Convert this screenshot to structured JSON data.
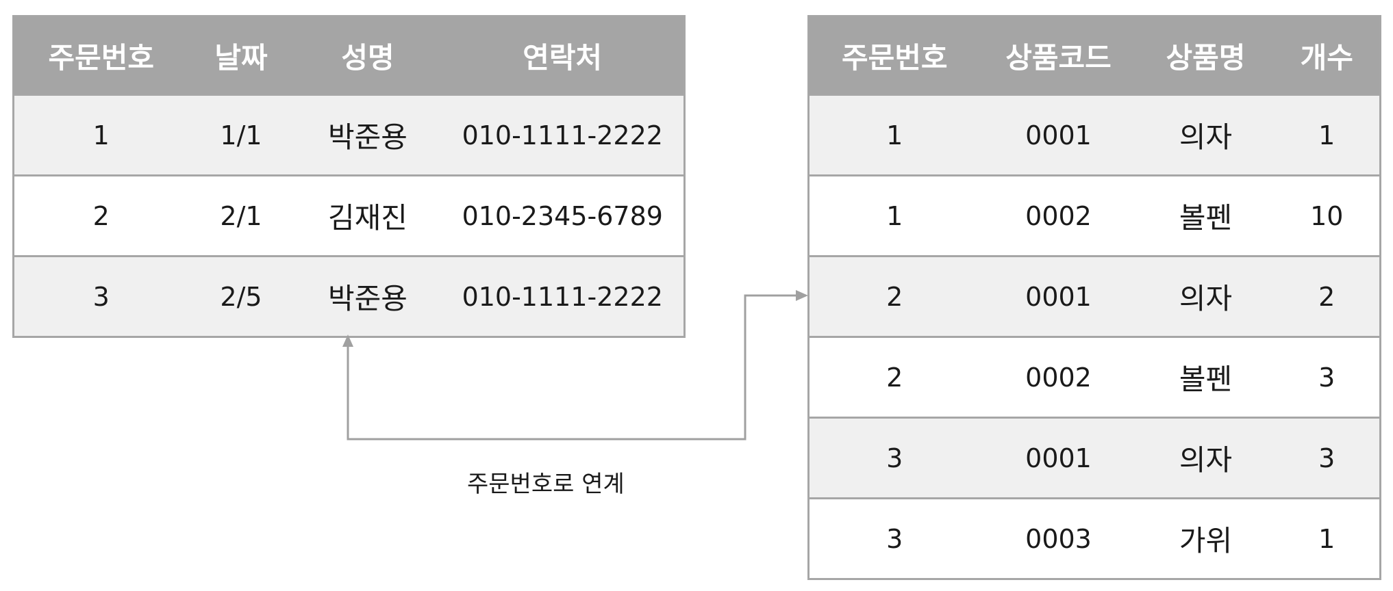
{
  "orders_table": {
    "headers": [
      "주문번호",
      "날짜",
      "성명",
      "연락처"
    ],
    "rows": [
      [
        "1",
        "1/1",
        "박준용",
        "010-1111-2222"
      ],
      [
        "2",
        "2/1",
        "김재진",
        "010-2345-6789"
      ],
      [
        "3",
        "2/5",
        "박준용",
        "010-1111-2222"
      ]
    ]
  },
  "items_table": {
    "headers": [
      "주문번호",
      "상품코드",
      "상품명",
      "개수"
    ],
    "rows": [
      [
        "1",
        "0001",
        "의자",
        "1"
      ],
      [
        "1",
        "0002",
        "볼펜",
        "10"
      ],
      [
        "2",
        "0001",
        "의자",
        "2"
      ],
      [
        "2",
        "0002",
        "볼펜",
        "3"
      ],
      [
        "3",
        "0001",
        "의자",
        "3"
      ],
      [
        "3",
        "0003",
        "가위",
        "1"
      ]
    ]
  },
  "link": {
    "caption": "주문번호로 연계"
  },
  "colors": {
    "header_bg": "#a5a5a5",
    "header_text": "#ffffff",
    "row_shade": "#f0f0f0",
    "border": "#a6a6a6",
    "connector": "#a0a0a0"
  }
}
